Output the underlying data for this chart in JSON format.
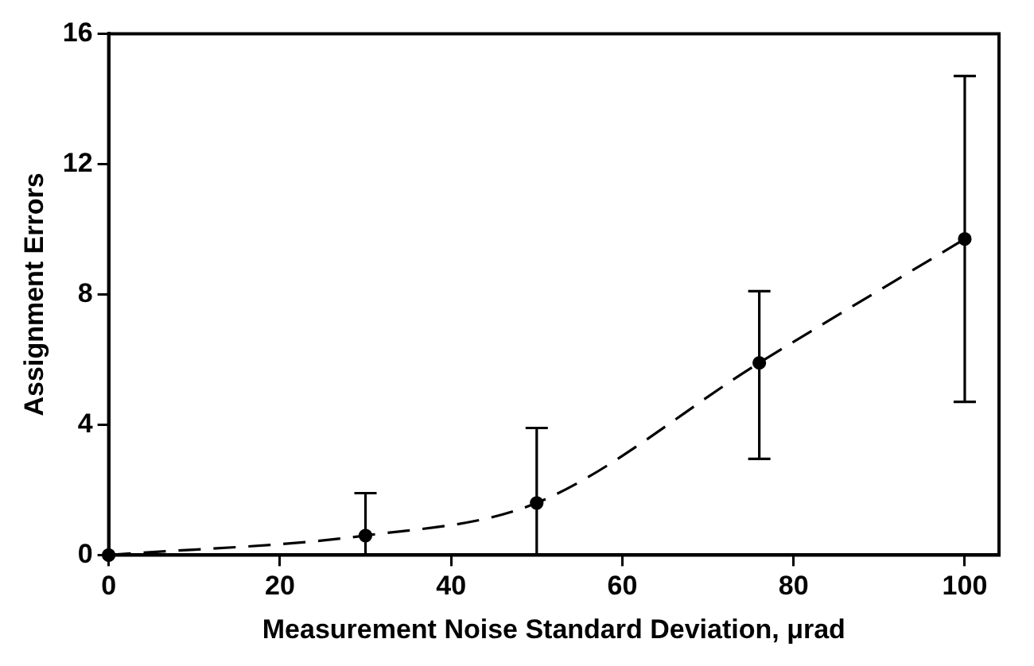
{
  "chart_data": {
    "type": "line",
    "xlabel": "Measurement Noise Standard Deviation, μrad",
    "ylabel": "Assignment Errors",
    "x": [
      0,
      30,
      50,
      76,
      100
    ],
    "series": [
      {
        "color": "#000000",
        "values": [
          0,
          0.6,
          1.6,
          5.9,
          9.7
        ],
        "errors": [
          null,
          [
            0,
            1.9
          ],
          [
            0,
            3.9
          ],
          [
            2.95,
            8.1
          ],
          [
            4.7,
            14.7
          ]
        ]
      }
    ],
    "xlim": [
      0,
      104
    ],
    "xticks": [
      0,
      20,
      40,
      60,
      80,
      100
    ],
    "ylim": [
      0,
      16
    ],
    "yticks": [
      0,
      4,
      8,
      12,
      16
    ],
    "grid": false,
    "legend": false,
    "marker": "circle",
    "line_style": "dashed"
  }
}
